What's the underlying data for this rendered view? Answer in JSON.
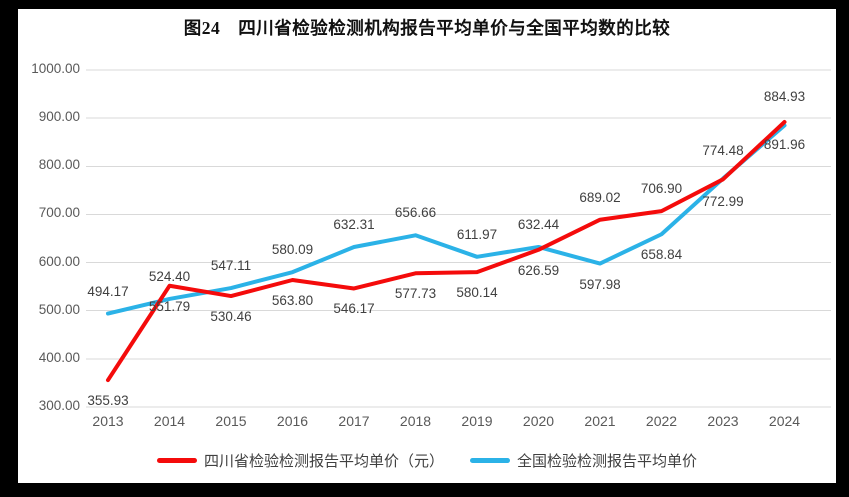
{
  "chart_data": {
    "type": "line",
    "title": "图24　四川省检验检测机构报告平均单价与全国平均数的比较",
    "categories": [
      "2013",
      "2014",
      "2015",
      "2016",
      "2017",
      "2018",
      "2019",
      "2020",
      "2021",
      "2022",
      "2023",
      "2024"
    ],
    "series": [
      {
        "name": "四川省检验检测报告平均单价（元）",
        "color": "#f40b0b",
        "values": [
          355.93,
          551.79,
          530.46,
          563.8,
          546.17,
          577.73,
          580.14,
          626.59,
          689.02,
          706.9,
          772.99,
          891.96
        ],
        "label_side": [
          "below",
          "below",
          "below",
          "below",
          "below",
          "below",
          "below",
          "below",
          "above",
          "above",
          "below",
          "below"
        ]
      },
      {
        "name": "全国检验检测报告平均单价",
        "color": "#2bb2e7",
        "values": [
          494.17,
          524.4,
          547.11,
          580.09,
          632.31,
          656.66,
          611.97,
          632.44,
          597.98,
          658.84,
          774.48,
          884.93
        ],
        "label_side": [
          "above",
          "above",
          "above",
          "above",
          "above",
          "above",
          "above",
          "above",
          "below",
          "below",
          "above",
          "above"
        ]
      }
    ],
    "ylim": [
      300,
      1000
    ],
    "ytick_step": 100,
    "yticks": [
      "300.00",
      "400.00",
      "500.00",
      "600.00",
      "700.00",
      "800.00",
      "900.00",
      "1000.00"
    ],
    "xlabel": "",
    "ylabel": "",
    "grid": true,
    "legend_position": "bottom",
    "colors": {
      "gridline": "#d9d9d9",
      "tick_text": "#595959",
      "data_label_text": "#404040",
      "panel_background": "#ffffff",
      "frame_background": "#000000"
    }
  }
}
